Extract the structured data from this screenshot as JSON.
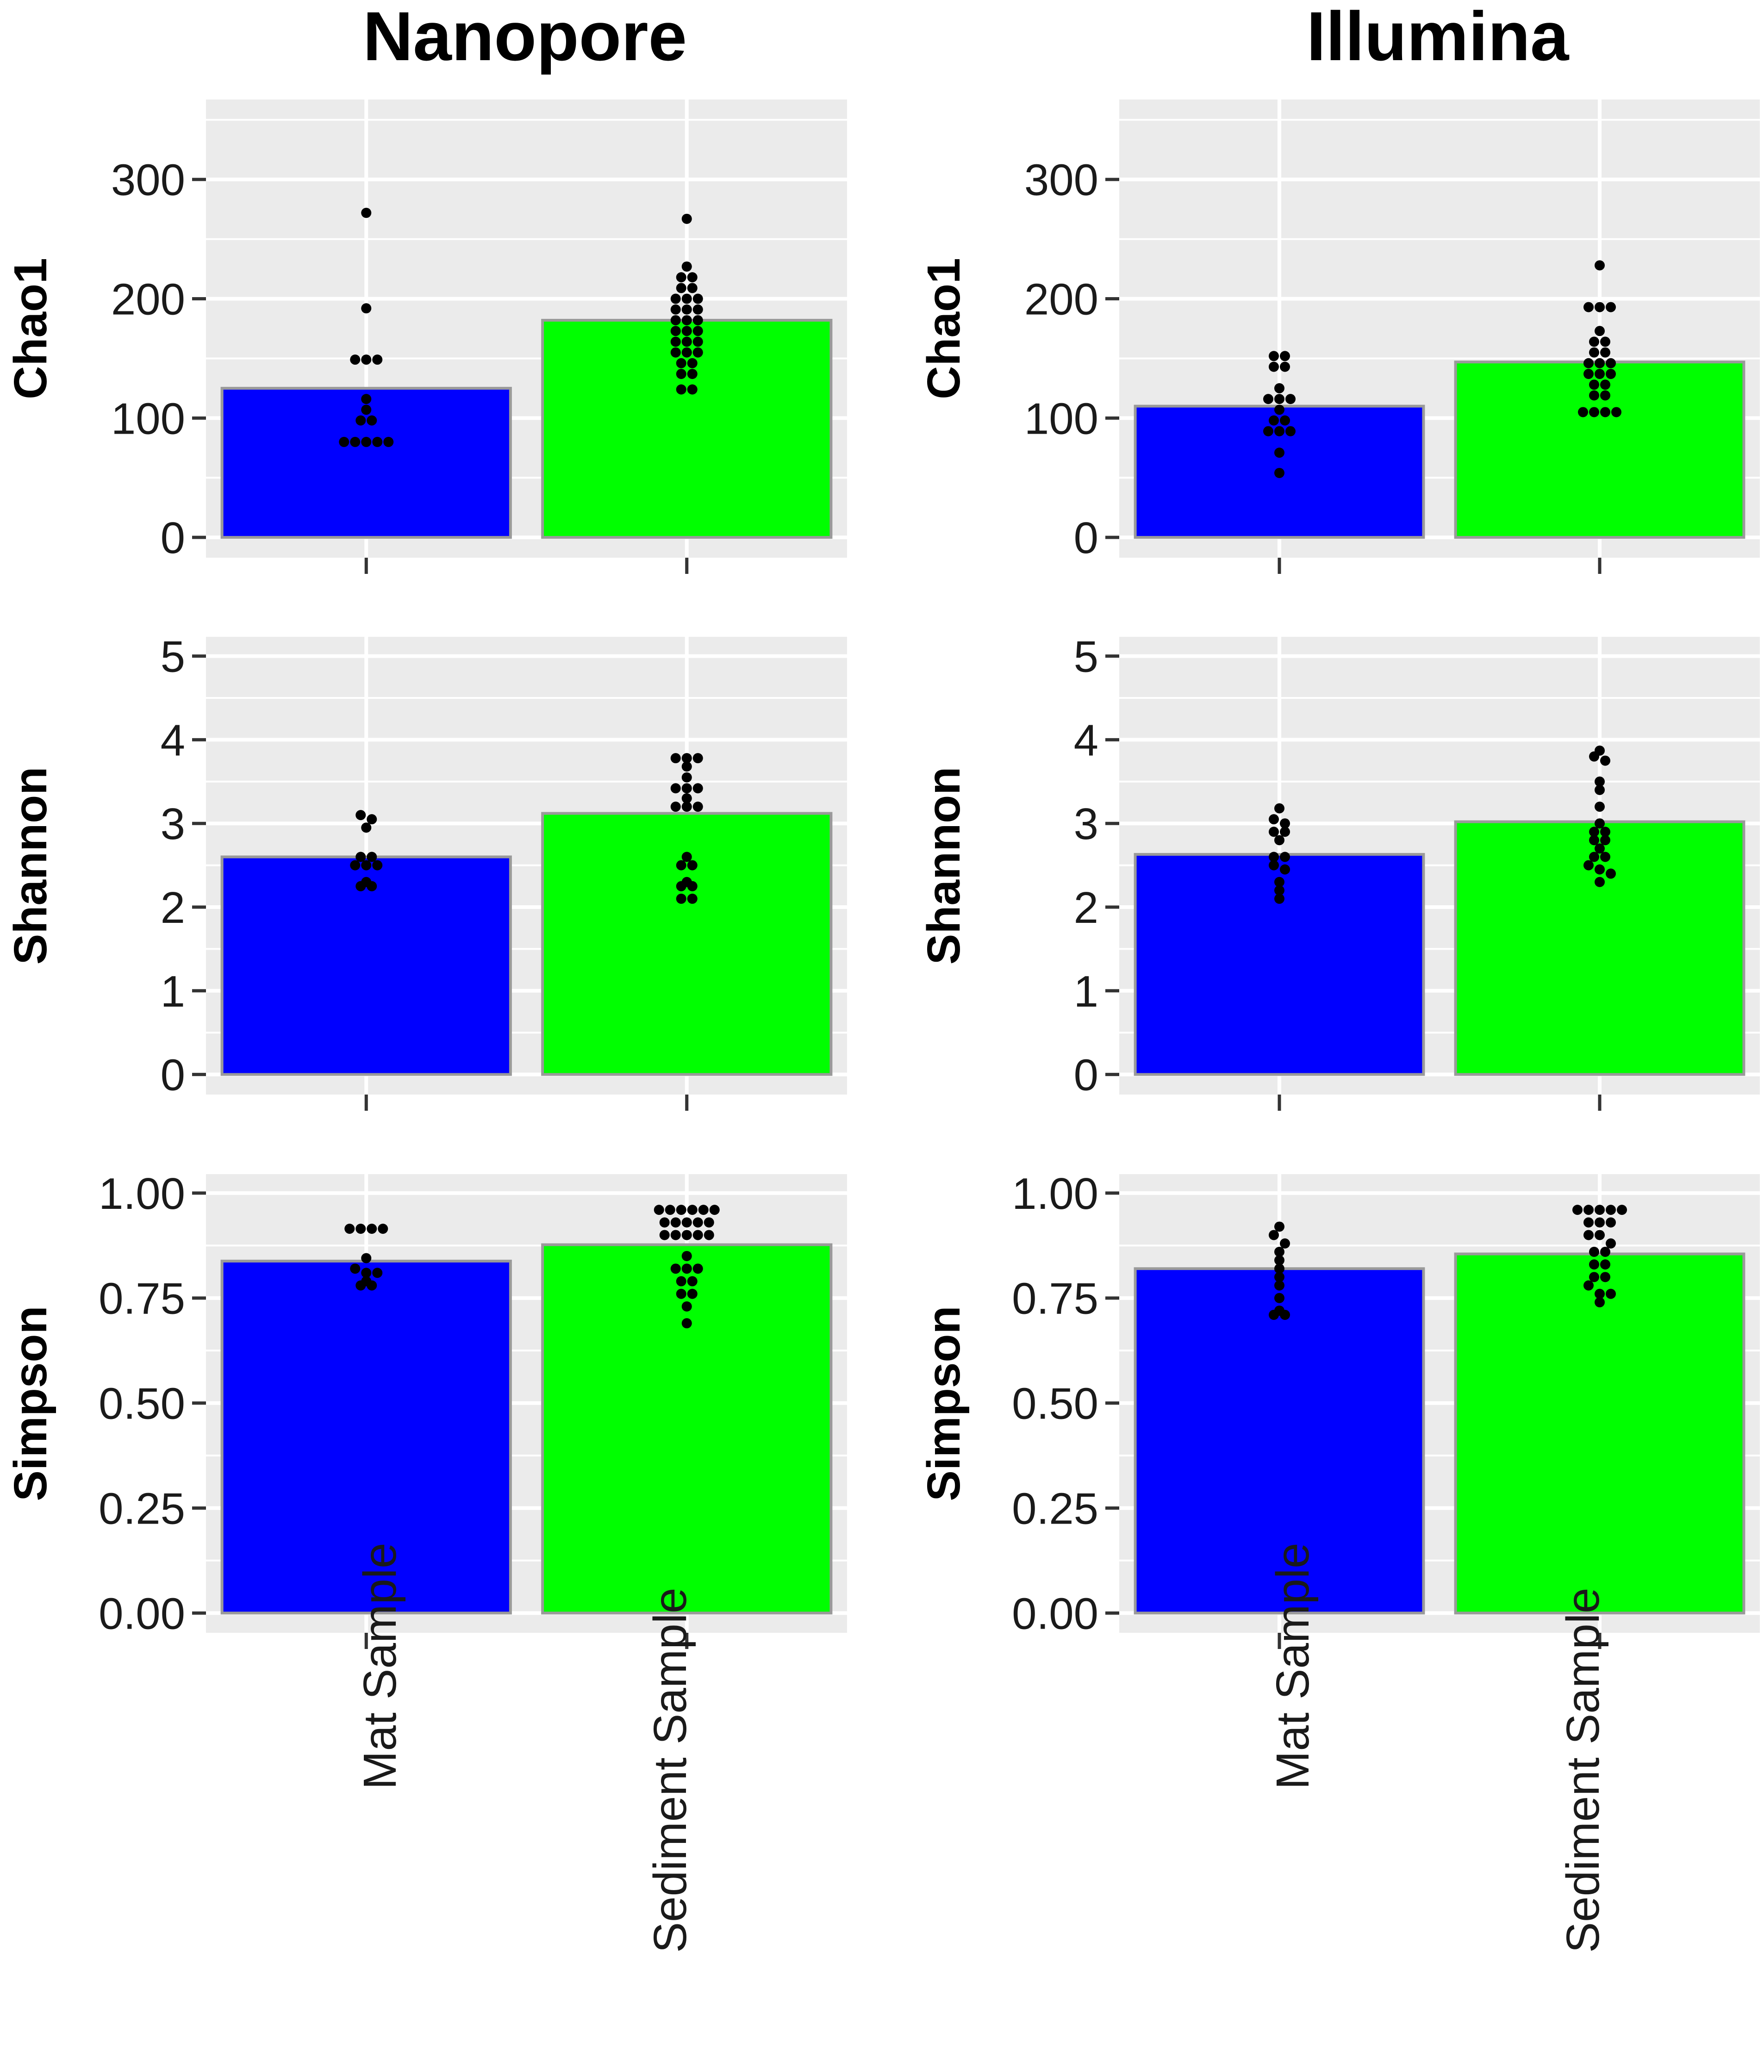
{
  "chart_data": [
    {
      "type": "bar",
      "panel": "Nanopore-Chao1",
      "column_title": "Nanopore",
      "ylabel": "Chao1",
      "categories": [
        "Mat Sample",
        "Sediment Sample"
      ],
      "values": [
        125,
        182
      ],
      "colors": [
        "#0000ff",
        "#00ff00"
      ],
      "ylim": [
        -17,
        367
      ],
      "yticks": [
        0,
        100,
        200,
        300
      ],
      "ytick_labels": [
        "0",
        "100",
        "200",
        "300"
      ],
      "points": [
        [
          272,
          192,
          149,
          149,
          149,
          116,
          107,
          98,
          98,
          80,
          80,
          80,
          80,
          80
        ],
        [
          267,
          227,
          218,
          218,
          209,
          209,
          200,
          200,
          200,
          191,
          191,
          191,
          182,
          182,
          182,
          173,
          173,
          173,
          164,
          164,
          164,
          155,
          155,
          155,
          146,
          146,
          137,
          137,
          124,
          124
        ]
      ]
    },
    {
      "type": "bar",
      "panel": "Illumina-Chao1",
      "column_title": "Illumina",
      "ylabel": "Chao1",
      "categories": [
        "Mat Sample",
        "Sediment Sample"
      ],
      "values": [
        110,
        147
      ],
      "colors": [
        "#0000ff",
        "#00ff00"
      ],
      "ylim": [
        -17,
        367
      ],
      "yticks": [
        0,
        100,
        200,
        300
      ],
      "ytick_labels": [
        "0",
        "100",
        "200",
        "300"
      ],
      "points": [
        [
          152,
          152,
          143,
          143,
          125,
          116,
          116,
          116,
          107,
          98,
          98,
          89,
          89,
          89,
          71,
          54
        ],
        [
          228,
          193,
          193,
          193,
          173,
          164,
          164,
          155,
          155,
          146,
          146,
          146,
          137,
          137,
          137,
          128,
          128,
          119,
          119,
          105,
          105,
          105,
          105
        ]
      ]
    },
    {
      "type": "bar",
      "panel": "Nanopore-Shannon",
      "ylabel": "Shannon",
      "categories": [
        "Mat Sample",
        "Sediment Sample"
      ],
      "values": [
        2.6,
        3.12
      ],
      "colors": [
        "#0000ff",
        "#00ff00"
      ],
      "ylim": [
        -0.24,
        5.23
      ],
      "yticks": [
        0,
        1,
        2,
        3,
        4,
        5
      ],
      "ytick_labels": [
        "0",
        "1",
        "2",
        "3",
        "4",
        "5"
      ],
      "points": [
        [
          3.1,
          3.05,
          2.95,
          2.6,
          2.6,
          2.5,
          2.5,
          2.5,
          2.3,
          2.25,
          2.25
        ],
        [
          3.78,
          3.78,
          3.78,
          3.68,
          3.55,
          3.42,
          3.42,
          3.42,
          3.3,
          3.2,
          3.2,
          3.2,
          2.6,
          2.5,
          2.5,
          2.3,
          2.25,
          2.25,
          2.1,
          2.1
        ]
      ]
    },
    {
      "type": "bar",
      "panel": "Illumina-Shannon",
      "ylabel": "Shannon",
      "categories": [
        "Mat Sample",
        "Sediment Sample"
      ],
      "values": [
        2.63,
        3.02
      ],
      "colors": [
        "#0000ff",
        "#00ff00"
      ],
      "ylim": [
        -0.24,
        5.23
      ],
      "yticks": [
        0,
        1,
        2,
        3,
        4,
        5
      ],
      "ytick_labels": [
        "0",
        "1",
        "2",
        "3",
        "4",
        "5"
      ],
      "points": [
        [
          3.18,
          3.05,
          3.0,
          2.9,
          2.9,
          2.8,
          2.6,
          2.6,
          2.5,
          2.45,
          2.3,
          2.2,
          2.1
        ],
        [
          3.87,
          3.8,
          3.75,
          3.5,
          3.4,
          3.2,
          3.0,
          2.9,
          2.9,
          2.8,
          2.8,
          2.7,
          2.6,
          2.6,
          2.5,
          2.45,
          2.4,
          2.3
        ]
      ]
    },
    {
      "type": "bar",
      "panel": "Nanopore-Simpson",
      "ylabel": "Simpson",
      "categories": [
        "Mat Sample",
        "Sediment Sample"
      ],
      "values": [
        0.838,
        0.877
      ],
      "colors": [
        "#0000ff",
        "#00ff00"
      ],
      "ylim": [
        -0.047,
        1.045
      ],
      "yticks": [
        0,
        0.25,
        0.5,
        0.75,
        1.0
      ],
      "ytick_labels": [
        "0.00",
        "0.25",
        "0.50",
        "0.75",
        "1.00"
      ],
      "points": [
        [
          0.915,
          0.915,
          0.915,
          0.915,
          0.845,
          0.82,
          0.81,
          0.81,
          0.79,
          0.78,
          0.78
        ],
        [
          0.96,
          0.96,
          0.96,
          0.96,
          0.96,
          0.96,
          0.93,
          0.93,
          0.93,
          0.93,
          0.93,
          0.9,
          0.9,
          0.9,
          0.9,
          0.9,
          0.85,
          0.82,
          0.82,
          0.82,
          0.79,
          0.79,
          0.76,
          0.76,
          0.73,
          0.69
        ]
      ]
    },
    {
      "type": "bar",
      "panel": "Illumina-Simpson",
      "ylabel": "Simpson",
      "categories": [
        "Mat Sample",
        "Sediment Sample"
      ],
      "values": [
        0.82,
        0.855
      ],
      "colors": [
        "#0000ff",
        "#00ff00"
      ],
      "ylim": [
        -0.047,
        1.045
      ],
      "yticks": [
        0,
        0.25,
        0.5,
        0.75,
        1.0
      ],
      "ytick_labels": [
        "0.00",
        "0.25",
        "0.50",
        "0.75",
        "1.00"
      ],
      "points": [
        [
          0.92,
          0.9,
          0.88,
          0.86,
          0.84,
          0.82,
          0.8,
          0.78,
          0.75,
          0.72,
          0.71,
          0.71
        ],
        [
          0.96,
          0.96,
          0.96,
          0.96,
          0.96,
          0.93,
          0.93,
          0.93,
          0.9,
          0.9,
          0.88,
          0.86,
          0.86,
          0.83,
          0.83,
          0.8,
          0.8,
          0.78,
          0.76,
          0.76,
          0.74
        ]
      ]
    }
  ]
}
